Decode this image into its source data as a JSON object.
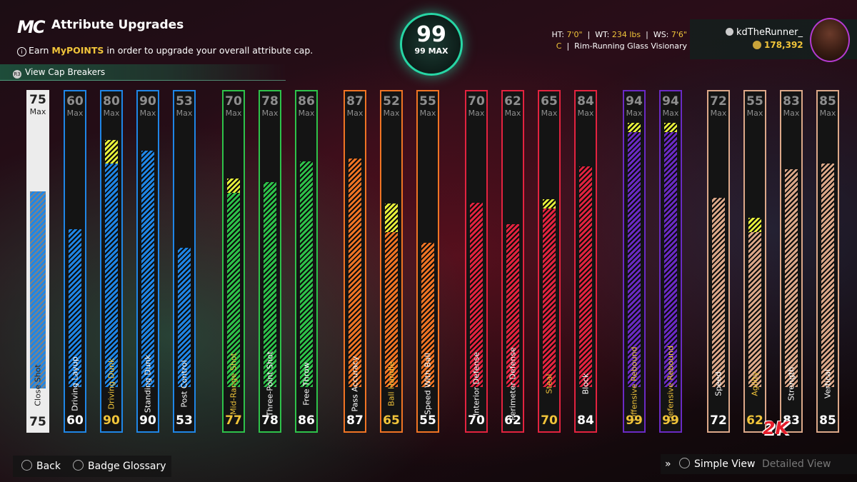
{
  "header": {
    "logo": "MC",
    "title": "Attribute Upgrades",
    "info_prefix": "Earn ",
    "info_highlight": "MyPOINTS",
    "info_suffix": " in order to upgrade your overall attribute cap.",
    "cap_breakers": "View Cap Breakers"
  },
  "overall": {
    "value": "99",
    "max_label": "99 MAX"
  },
  "measurements": {
    "ht_label": "HT:",
    "ht_value": "7'0\"",
    "wt_label": "WT:",
    "wt_value": "234 lbs",
    "ws_label": "WS:",
    "ws_value": "7'6\"",
    "position": "C",
    "archetype": "Rim-Running Glass Visionary"
  },
  "profile": {
    "username": "kdTheRunner_",
    "vc": "178,392"
  },
  "max_word": "Max",
  "attributes": [
    {
      "name": "Close Shot",
      "max": 75,
      "current": 75,
      "boost": 0
    },
    {
      "name": "Driving Layup",
      "max": 60,
      "current": 60,
      "boost": 0
    },
    {
      "name": "Driving Dunk",
      "max": 80,
      "current": 90,
      "boost": 5
    },
    {
      "name": "Standing Dunk",
      "max": 90,
      "current": 90,
      "boost": 0
    },
    {
      "name": "Post Control",
      "max": 53,
      "current": 53,
      "boost": 0
    },
    {
      "name": "Mid-Range Shot",
      "max": 70,
      "current": 77,
      "boost": 3
    },
    {
      "name": "Three-Point Shot",
      "max": 78,
      "current": 78,
      "boost": 0
    },
    {
      "name": "Free Throw",
      "max": 86,
      "current": 86,
      "boost": 0
    },
    {
      "name": "Pass Accuracy",
      "max": 87,
      "current": 87,
      "boost": 0
    },
    {
      "name": "Ball Handle",
      "max": 52,
      "current": 65,
      "boost": 6
    },
    {
      "name": "Speed With Ball",
      "max": 55,
      "current": 55,
      "boost": 0
    },
    {
      "name": "Interior Defense",
      "max": 70,
      "current": 70,
      "boost": 0
    },
    {
      "name": "Perimeter Defense",
      "max": 62,
      "current": 62,
      "boost": 0
    },
    {
      "name": "Steal",
      "max": 65,
      "current": 70,
      "boost": 2
    },
    {
      "name": "Block",
      "max": 84,
      "current": 84,
      "boost": 0
    },
    {
      "name": "Offensive Rebound",
      "max": 94,
      "current": 99,
      "boost": 2
    },
    {
      "name": "Defensive Rebound",
      "max": 94,
      "current": 99,
      "boost": 2
    },
    {
      "name": "Speed",
      "max": 72,
      "current": 72,
      "boost": 0
    },
    {
      "name": "Agility",
      "max": 55,
      "current": 62,
      "boost": 3
    },
    {
      "name": "Strength",
      "max": 83,
      "current": 83,
      "boost": 0
    },
    {
      "name": "Vertical",
      "max": 85,
      "current": 85,
      "boost": 0
    }
  ],
  "colors": {
    "blue": "#1f86e6",
    "green": "#2ec24a",
    "orange": "#f07424",
    "red": "#e3233f",
    "purple": "#6a2ac4",
    "tan": "#dca889",
    "boost": "#e6ef3a",
    "highlight": "#f0c43a"
  },
  "footer": {
    "back": "Back",
    "badge_glossary": "Badge Glossary",
    "simple_view": "Simple View",
    "detailed_view": "Detailed View"
  }
}
